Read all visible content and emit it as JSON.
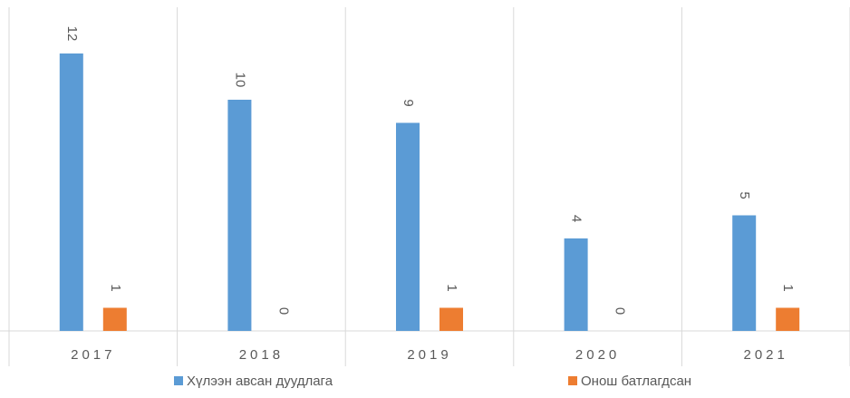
{
  "chart_data": {
    "type": "bar",
    "categories": [
      "2017",
      "2018",
      "2019",
      "2020",
      "2021"
    ],
    "series": [
      {
        "name": "Хүлээн авсан дуудлага",
        "color": "#5b9bd5",
        "values": [
          12,
          10,
          9,
          4,
          5
        ]
      },
      {
        "name": "Онош батлагдсан",
        "color": "#ed7d31",
        "values": [
          1,
          0,
          1,
          0,
          1
        ]
      }
    ],
    "ylim": [
      0,
      14
    ]
  }
}
